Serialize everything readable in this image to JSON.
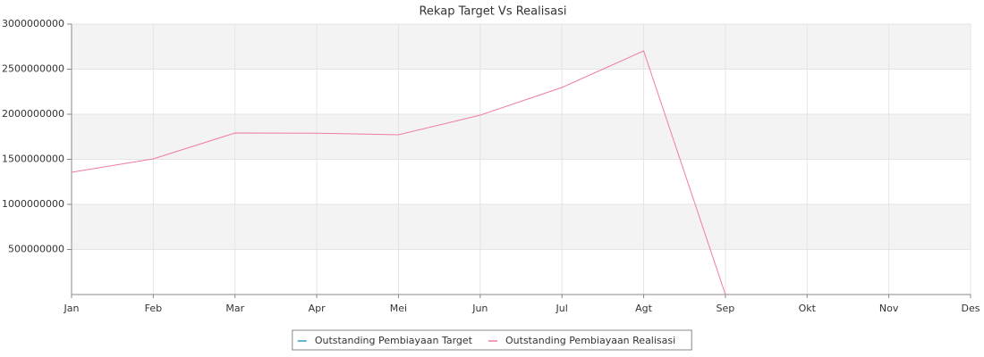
{
  "chart_data": {
    "type": "line",
    "title": "Rekap Target Vs Realisasi",
    "categories": [
      "Jan",
      "Feb",
      "Mar",
      "Apr",
      "Mei",
      "Jun",
      "Jul",
      "Agt",
      "Sep",
      "Okt",
      "Nov",
      "Des"
    ],
    "series": [
      {
        "name": "Outstanding Pembiayaan Target",
        "color": "#3399cc",
        "values": [
          null,
          null,
          null,
          null,
          null,
          null,
          null,
          null,
          null,
          null,
          null,
          null
        ]
      },
      {
        "name": "Outstanding Pembiayaan Realisasi",
        "color": "#f07aa8",
        "values": [
          1356000000,
          1505000000,
          1792000000,
          1790000000,
          1772000000,
          1990000000,
          2297000000,
          2703000000,
          0,
          null,
          null,
          null
        ]
      }
    ],
    "ylim": [
      0,
      3000000000
    ],
    "yticks": [
      500000000,
      1000000000,
      1500000000,
      2000000000,
      2500000000,
      3000000000
    ],
    "grid": true,
    "legend": "bottom"
  }
}
